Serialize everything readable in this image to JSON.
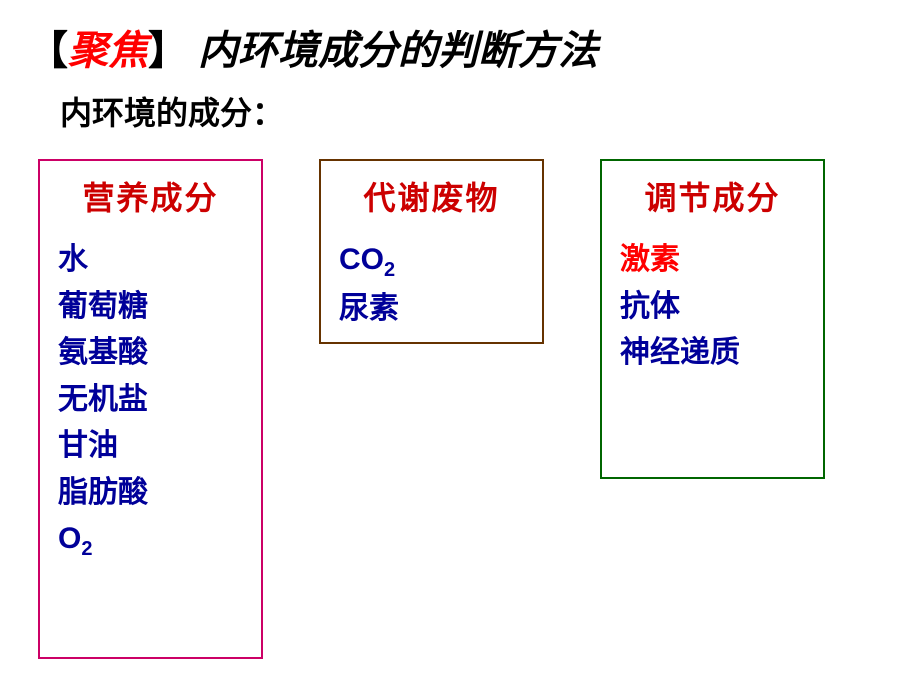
{
  "title": {
    "bracket_open": "【",
    "focus": "聚焦",
    "bracket_close": "】",
    "text": "内环境成分的判断方法"
  },
  "subtitle": "内环境的成分：",
  "box1": {
    "title": "营养成分",
    "border_color": "#cc0066",
    "items": [
      {
        "text": "水",
        "sub": ""
      },
      {
        "text": "葡萄糖",
        "sub": ""
      },
      {
        "text": "氨基酸",
        "sub": ""
      },
      {
        "text": "无机盐",
        "sub": ""
      },
      {
        "text": "甘油",
        "sub": ""
      },
      {
        "text": "脂肪酸",
        "sub": ""
      },
      {
        "text": "O",
        "sub": "2"
      }
    ]
  },
  "box2": {
    "title": "代谢废物",
    "border_color": "#663300",
    "items": [
      {
        "text": "CO",
        "sub": "2"
      },
      {
        "text": "尿素",
        "sub": ""
      }
    ]
  },
  "box3": {
    "title": "调节成分",
    "border_color": "#006600",
    "items": [
      {
        "text": "激素",
        "sub": "",
        "red": true
      },
      {
        "text": "抗体",
        "sub": ""
      },
      {
        "text": "神经递质",
        "sub": ""
      }
    ]
  }
}
